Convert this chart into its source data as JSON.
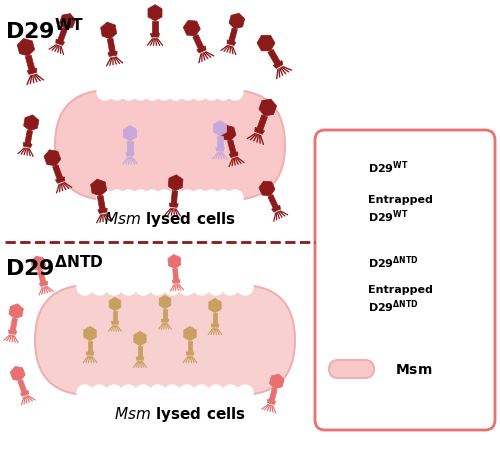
{
  "bg_color": "#ffffff",
  "cell_color": "#f9c8c8",
  "cell_edge_color": "#f0a0a0",
  "dark_red": "#8b1a1a",
  "pink": "#e87070",
  "lavender": "#c8a8d8",
  "tan": "#c8a060",
  "legend_box_color": "#e87070",
  "dashed_color": "#8b1a1a",
  "title_wt": "D29",
  "title_ntd": "D29",
  "msm_label": "Msm lysed cells",
  "legend_labels": [
    "D29",
    "Entrapped\nD29",
    "D29",
    "Entrapped\nD29",
    "Msm"
  ],
  "legend_superscripts": [
    "WT",
    "WT",
    "ΔNTD",
    "ΔNTD",
    ""
  ]
}
